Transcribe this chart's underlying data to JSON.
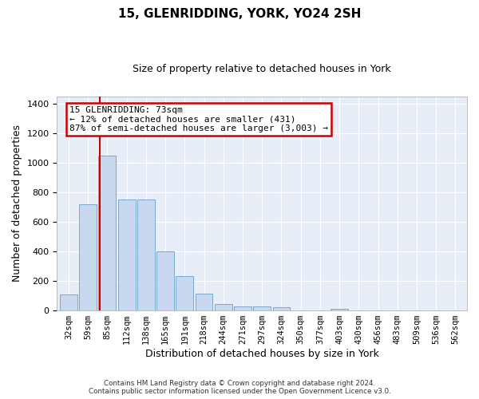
{
  "title": "15, GLENRIDDING, YORK, YO24 2SH",
  "subtitle": "Size of property relative to detached houses in York",
  "xlabel": "Distribution of detached houses by size in York",
  "ylabel": "Number of detached properties",
  "footer_line1": "Contains HM Land Registry data © Crown copyright and database right 2024.",
  "footer_line2": "Contains public sector information licensed under the Open Government Licence v3.0.",
  "annotation_line1": "15 GLENRIDDING: 73sqm",
  "annotation_line2": "← 12% of detached houses are smaller (431)",
  "annotation_line3": "87% of semi-detached houses are larger (3,003) →",
  "bar_labels": [
    "32sqm",
    "59sqm",
    "85sqm",
    "112sqm",
    "138sqm",
    "165sqm",
    "191sqm",
    "218sqm",
    "244sqm",
    "271sqm",
    "297sqm",
    "324sqm",
    "350sqm",
    "377sqm",
    "403sqm",
    "430sqm",
    "456sqm",
    "483sqm",
    "509sqm",
    "536sqm",
    "562sqm"
  ],
  "bar_values": [
    107,
    720,
    1050,
    750,
    750,
    400,
    235,
    115,
    45,
    28,
    28,
    20,
    0,
    0,
    13,
    0,
    0,
    0,
    0,
    0,
    0
  ],
  "bar_color": "#c8d8ee",
  "bar_edge_color": "#7aa8cc",
  "fig_bg_color": "#ffffff",
  "plot_bg_color": "#e8eef8",
  "grid_color": "#ffffff",
  "red_line_x": 1.62,
  "ylim": [
    0,
    1450
  ],
  "yticks": [
    0,
    200,
    400,
    600,
    800,
    1000,
    1200,
    1400
  ],
  "annotation_box_color": "#cc0000",
  "red_line_color": "#cc0000",
  "title_fontsize": 11,
  "subtitle_fontsize": 9,
  "ylabel_fontsize": 9,
  "xlabel_fontsize": 9,
  "tick_fontsize": 8,
  "xtick_fontsize": 7.5,
  "annotation_fontsize": 8
}
